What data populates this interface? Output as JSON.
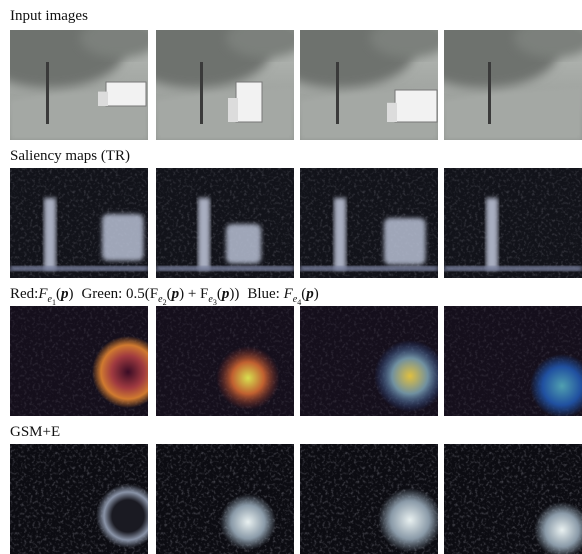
{
  "rows": [
    {
      "label": "Input images"
    },
    {
      "label": "Saliency maps (TR)"
    },
    {
      "label": [
        "Red:",
        "F",
        "e",
        "1",
        "(",
        "p",
        ")",
        "Green:",
        "0.5(F",
        "e",
        "2",
        "(",
        "p",
        ") + F",
        "e",
        "3",
        "(",
        "p",
        "))",
        "Blue:",
        "F",
        "e",
        "4",
        "(",
        "p",
        ")"
      ]
    },
    {
      "label": "GSM+E"
    }
  ]
}
